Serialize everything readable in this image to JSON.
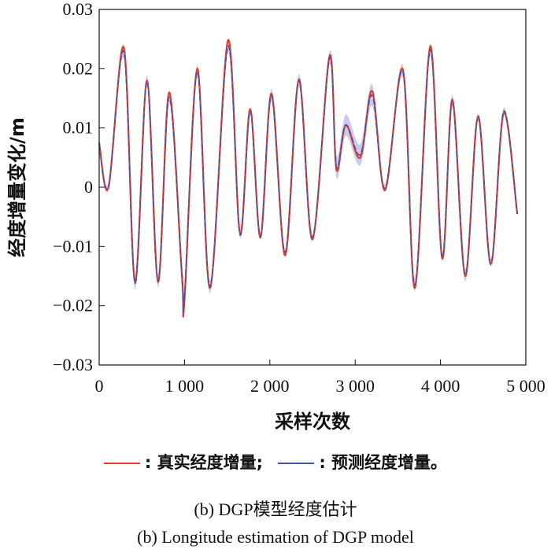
{
  "chart_data": {
    "type": "line",
    "title": "",
    "xlabel": "采样次数",
    "ylabel": "经度增量变化/m",
    "xlim": [
      0,
      5000
    ],
    "ylim": [
      -0.03,
      0.03
    ],
    "x_ticks": [
      0,
      1000,
      2000,
      3000,
      4000,
      5000
    ],
    "x_tick_labels": [
      "0",
      "1 000",
      "2 000",
      "3 000",
      "4 000",
      "5 000"
    ],
    "y_ticks": [
      -0.03,
      -0.02,
      -0.01,
      0,
      0.01,
      0.02,
      0.03
    ],
    "y_tick_labels": [
      "−0.03",
      "−0.02",
      "−0.01",
      "0",
      "0.01",
      "0.02",
      "0.03"
    ],
    "grid": false,
    "x": [
      0,
      110,
      290,
      420,
      560,
      690,
      820,
      970,
      1000,
      1150,
      1300,
      1510,
      1650,
      1770,
      1890,
      2020,
      2180,
      2340,
      2500,
      2700,
      2780,
      2890,
      3060,
      3200,
      3350,
      3560,
      3700,
      3880,
      4020,
      4140,
      4290,
      4440,
      4590,
      4740,
      4900
    ],
    "series": [
      {
        "name": "真实经度增量",
        "color": "#e0402a",
        "values": [
          0.0075,
          0.0,
          0.0235,
          -0.016,
          0.018,
          -0.016,
          0.016,
          -0.015,
          -0.019,
          0.02,
          -0.017,
          0.0248,
          -0.0078,
          0.0132,
          -0.0085,
          0.0158,
          -0.0115,
          0.0182,
          -0.0088,
          0.0222,
          0.003,
          0.0105,
          0.005,
          0.0162,
          -0.0005,
          0.0198,
          -0.017,
          0.0238,
          -0.012,
          0.0148,
          -0.015,
          0.012,
          -0.013,
          0.0125,
          -0.0045
        ]
      },
      {
        "name": "预测经度增量",
        "color": "#4a4fa8",
        "values": [
          0.007,
          0.0002,
          0.0228,
          -0.0162,
          0.0178,
          -0.0158,
          0.0152,
          -0.0145,
          -0.0185,
          0.0195,
          -0.0168,
          0.0238,
          -0.008,
          0.0128,
          -0.0083,
          0.0155,
          -0.011,
          0.018,
          -0.0085,
          0.0218,
          0.0035,
          0.0105,
          0.0055,
          0.0155,
          -0.0002,
          0.0195,
          -0.0165,
          0.0232,
          -0.0118,
          0.0145,
          -0.0148,
          0.0118,
          -0.0128,
          0.0128,
          -0.0045
        ]
      }
    ]
  },
  "legend": {
    "label_true": ": 真实经度增量;",
    "label_pred": ": 预测经度增量。",
    "color_true": "#e0402a",
    "color_pred": "#4a4fa8"
  },
  "caption_cn": "(b) DGP模型经度估计",
  "caption_en": "(b) Longitude estimation of DGP model",
  "band_color": "#9aa0e0"
}
